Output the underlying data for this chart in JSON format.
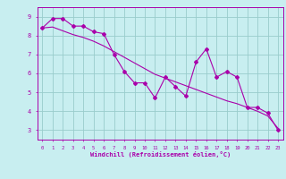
{
  "xlabel": "Windchill (Refroidissement éolien,°C)",
  "x_data": [
    0,
    1,
    2,
    3,
    4,
    5,
    6,
    7,
    8,
    9,
    10,
    11,
    12,
    13,
    14,
    15,
    16,
    17,
    18,
    19,
    20,
    21,
    22,
    23
  ],
  "y_line": [
    8.4,
    8.9,
    8.9,
    8.5,
    8.5,
    8.2,
    8.1,
    7.0,
    6.1,
    5.5,
    5.5,
    4.7,
    5.8,
    5.3,
    4.8,
    6.6,
    7.3,
    5.8,
    6.1,
    5.8,
    4.2,
    4.2,
    3.9,
    3.0
  ],
  "y_trend": [
    8.4,
    8.45,
    8.25,
    8.05,
    7.9,
    7.7,
    7.45,
    7.15,
    6.85,
    6.55,
    6.25,
    5.95,
    5.75,
    5.55,
    5.35,
    5.15,
    4.95,
    4.75,
    4.55,
    4.4,
    4.2,
    4.0,
    3.75,
    3.1
  ],
  "line_color": "#aa00aa",
  "bg_color": "#c8eef0",
  "grid_color": "#99cccc",
  "ylim": [
    2.5,
    9.5
  ],
  "xlim": [
    -0.5,
    23.5
  ],
  "yticks": [
    3,
    4,
    5,
    6,
    7,
    8,
    9
  ],
  "xticks": [
    0,
    1,
    2,
    3,
    4,
    5,
    6,
    7,
    8,
    9,
    10,
    11,
    12,
    13,
    14,
    15,
    16,
    17,
    18,
    19,
    20,
    21,
    22,
    23
  ]
}
